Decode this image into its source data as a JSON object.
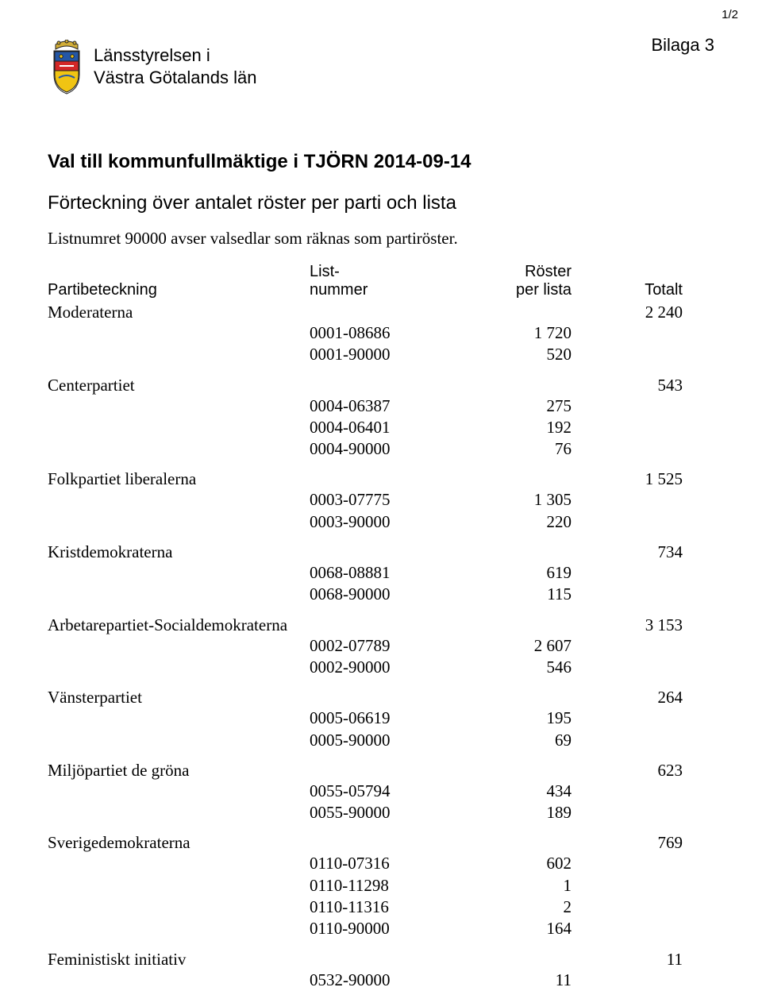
{
  "page_number": "1/2",
  "bilaga": "Bilaga 3",
  "org_line1": "Länsstyrelsen i",
  "org_line2": "Västra Götalands län",
  "title": "Val till kommunfullmäktige i TJÖRN 2014-09-14",
  "subtitle": "Förteckning över antalet röster per parti och lista",
  "note": "Listnumret 90000 avser valsedlar som räknas som partiröster.",
  "headers": {
    "party": "Partibeteckning",
    "listnum_l1": "List-",
    "listnum_l2": "nummer",
    "perlista_l1": "Röster",
    "perlista_l2": "per lista",
    "total": "Totalt"
  },
  "parties": [
    {
      "name": "Moderaterna",
      "total": "2 240",
      "lists": [
        {
          "num": "0001-08686",
          "votes": "1 720"
        },
        {
          "num": "0001-90000",
          "votes": "520"
        }
      ]
    },
    {
      "name": "Centerpartiet",
      "total": "543",
      "lists": [
        {
          "num": "0004-06387",
          "votes": "275"
        },
        {
          "num": "0004-06401",
          "votes": "192"
        },
        {
          "num": "0004-90000",
          "votes": "76"
        }
      ]
    },
    {
      "name": "Folkpartiet liberalerna",
      "total": "1 525",
      "lists": [
        {
          "num": "0003-07775",
          "votes": "1 305"
        },
        {
          "num": "0003-90000",
          "votes": "220"
        }
      ]
    },
    {
      "name": "Kristdemokraterna",
      "total": "734",
      "lists": [
        {
          "num": "0068-08881",
          "votes": "619"
        },
        {
          "num": "0068-90000",
          "votes": "115"
        }
      ]
    },
    {
      "name": "Arbetarepartiet-Socialdemokraterna",
      "total": "3 153",
      "lists": [
        {
          "num": "0002-07789",
          "votes": "2 607"
        },
        {
          "num": "0002-90000",
          "votes": "546"
        }
      ]
    },
    {
      "name": "Vänsterpartiet",
      "total": "264",
      "lists": [
        {
          "num": "0005-06619",
          "votes": "195"
        },
        {
          "num": "0005-90000",
          "votes": "69"
        }
      ]
    },
    {
      "name": "Miljöpartiet de gröna",
      "total": "623",
      "lists": [
        {
          "num": "0055-05794",
          "votes": "434"
        },
        {
          "num": "0055-90000",
          "votes": "189"
        }
      ]
    },
    {
      "name": "Sverigedemokraterna",
      "total": "769",
      "lists": [
        {
          "num": "0110-07316",
          "votes": "602"
        },
        {
          "num": "0110-11298",
          "votes": "1"
        },
        {
          "num": "0110-11316",
          "votes": "2"
        },
        {
          "num": "0110-90000",
          "votes": "164"
        }
      ]
    },
    {
      "name": "Feministiskt initiativ",
      "total": "11",
      "lists": [
        {
          "num": "0532-90000",
          "votes": "11"
        }
      ]
    }
  ],
  "crest_colors": {
    "crown": "#d4af37",
    "shield_top": "#2457a6",
    "shield_mid": "#d32727",
    "shield_bot": "#f0c413",
    "outline": "#222222"
  }
}
